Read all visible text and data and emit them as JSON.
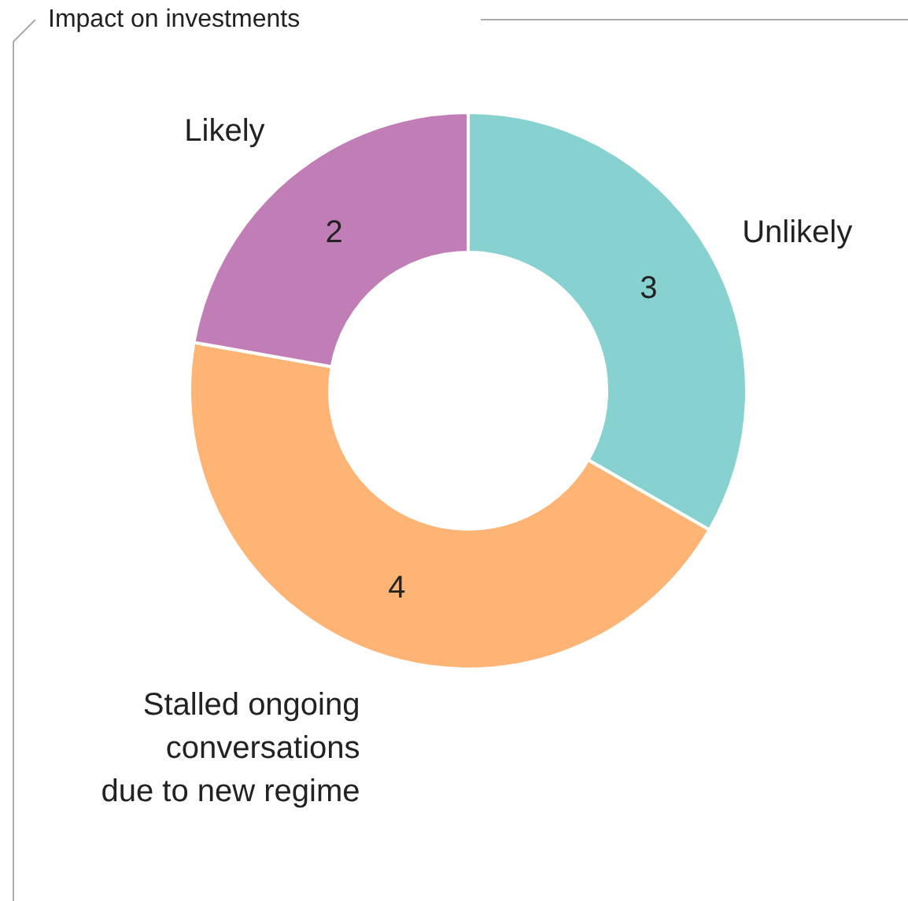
{
  "chart_data": {
    "type": "donut",
    "title": "Impact on investments",
    "categories": [
      "Unlikely",
      "Stalled ongoing\nconversations\ndue to new regime",
      "Likely"
    ],
    "values": [
      3,
      4,
      2
    ],
    "colors": [
      "#88d1d1",
      "#fdb474",
      "#c17db5"
    ],
    "data_labels": true
  }
}
